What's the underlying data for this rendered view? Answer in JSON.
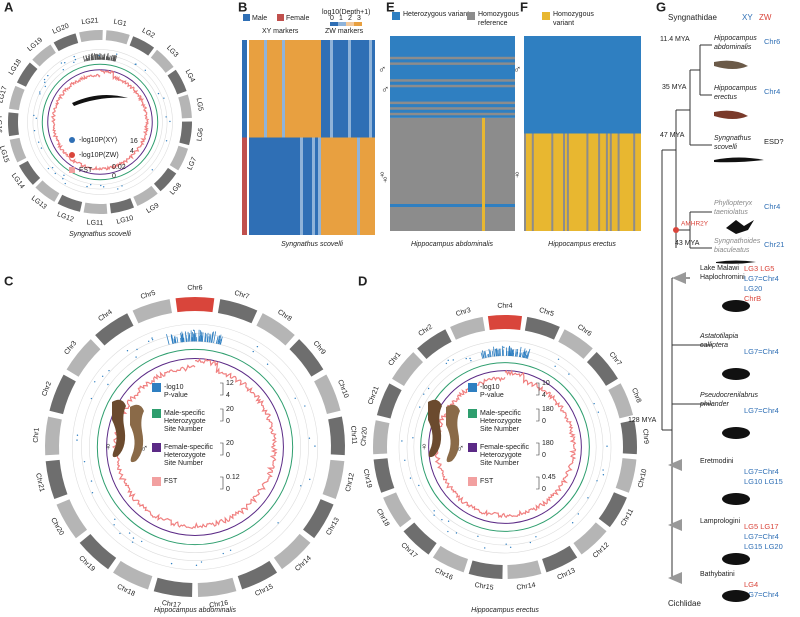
{
  "panels": {
    "A": {
      "label": "A",
      "chromosomes": [
        "LG1",
        "LG2",
        "LG3",
        "LG4",
        "LG5",
        "LG6",
        "LG7",
        "LG8",
        "LG9",
        "LG10",
        "LG11",
        "LG12",
        "LG13",
        "LG14",
        "LG15",
        "LG16",
        "LG17",
        "LG18",
        "LG19",
        "LG20",
        "LG21"
      ],
      "legend": [
        {
          "text": "-log10P(XY)",
          "color": "#2f6fb5"
        },
        {
          "text": "-log10P(ZW)",
          "color": "#d9453b"
        },
        {
          "text": "FST",
          "color": "#f2a0a0"
        }
      ],
      "scales": [
        [
          "16",
          "4"
        ],
        [
          "0.02",
          "0"
        ]
      ],
      "caption": "Syngnathus scovelli"
    },
    "B": {
      "label": "B",
      "legend": [
        {
          "text": "Male",
          "color": "#2f6fb5"
        },
        {
          "text": "Female",
          "color": "#c0504d"
        }
      ],
      "depth_title": "log10(Depth+1)",
      "depth_ticks": [
        "0",
        "1",
        "2",
        "3"
      ],
      "markers": [
        "XY markers",
        "ZW markers"
      ],
      "sexes": [
        "♂",
        "♀"
      ],
      "caption": "Syngnathus scovelli"
    },
    "C": {
      "label": "C",
      "chromosomes": [
        "Chr6",
        "Chr7",
        "Chr8",
        "Chr9",
        "Chr10",
        "Chr11",
        "Chr12",
        "Chr13",
        "Chr14",
        "Chr15",
        "Chr16",
        "Chr17",
        "Chr18",
        "Chr19",
        "Chr20",
        "Chr21",
        "Chr1",
        "Chr2",
        "Chr3",
        "Chr4",
        "Chr5"
      ],
      "highlight": "Chr6",
      "legend": [
        {
          "lines": [
            "-log10",
            "P-value"
          ],
          "color": "#2f7fc1",
          "scale": [
            "12",
            "4"
          ]
        },
        {
          "lines": [
            "Male-specific",
            "Heterozygote",
            "Site Number"
          ],
          "color": "#2e9e6e",
          "scale": [
            "20",
            "0"
          ]
        },
        {
          "lines": [
            "Female-specific",
            "Heterozygote",
            "Site Number"
          ],
          "color": "#5b2a86",
          "scale": [
            "20",
            "0"
          ]
        },
        {
          "lines": [
            "FST"
          ],
          "color": "#f2a0a0",
          "scale": [
            "0.12",
            "0"
          ]
        }
      ],
      "sexes": [
        "♀",
        "♂"
      ],
      "caption": "Hippocampus abdominalis"
    },
    "D": {
      "label": "D",
      "chromosomes": [
        "Chr4",
        "Chr5",
        "Chr6",
        "Chr7",
        "Chr8",
        "Chr9",
        "Chr10",
        "Chr11",
        "Chr12",
        "Chr13",
        "Chr14",
        "Chr15",
        "Chr16",
        "Chr17",
        "Chr18",
        "Chr19",
        "Chr20",
        "Chr21",
        "Chr1",
        "Chr2",
        "Chr3"
      ],
      "highlight": "Chr4",
      "legend": [
        {
          "lines": [
            "-log10",
            "P-value"
          ],
          "color": "#2f7fc1",
          "scale": [
            "10",
            "4"
          ]
        },
        {
          "lines": [
            "Male-specific",
            "Heterozygote",
            "Site Number"
          ],
          "color": "#2e9e6e",
          "scale": [
            "180",
            "0"
          ]
        },
        {
          "lines": [
            "Female-specific",
            "Heterozygote",
            "Site Number"
          ],
          "color": "#5b2a86",
          "scale": [
            "180",
            "0"
          ]
        },
        {
          "lines": [
            "FST"
          ],
          "color": "#f2a0a0",
          "scale": [
            "0.45",
            "0"
          ]
        }
      ],
      "sexes": [
        "♀",
        "♂"
      ],
      "caption": "Hippocampus erectus"
    },
    "E": {
      "label": "E",
      "legend": [
        {
          "lines": [
            "Heterozygous variant"
          ],
          "color": "#2f7fc1"
        },
        {
          "lines": [
            "Homozygous",
            "reference"
          ],
          "color": "#8c8c8c"
        },
        {
          "lines": [
            "Homozygous",
            "variant"
          ],
          "color": "#e8b730"
        }
      ],
      "sexes": [
        "♂",
        "♀"
      ],
      "caption": "Hippocampus abdominalis"
    },
    "F": {
      "label": "F",
      "sexes": [
        "♂",
        "♀"
      ],
      "caption": "Hippocampus erectus"
    },
    "G": {
      "label": "G",
      "group_top": "Syngnathidae",
      "systems": [
        {
          "text": "XY",
          "color": "#2f6fb5"
        },
        {
          "text": "ZW",
          "color": "#d9453b"
        }
      ],
      "taxa": [
        {
          "lines": [
            "Hippocampus",
            "abdominalis"
          ],
          "italic": true,
          "markers": [
            {
              "text": "Chr6",
              "system": "XY"
            }
          ]
        },
        {
          "lines": [
            "Hippocampus",
            "erectus"
          ],
          "italic": true,
          "markers": [
            {
              "text": "Chr4",
              "system": "XY"
            }
          ]
        },
        {
          "lines": [
            "Syngnathus",
            "scovelli"
          ],
          "italic": true,
          "markers": [
            {
              "text": "ESD?"
            }
          ]
        },
        {
          "lines": [
            "Phyllopteryx",
            "taeniolatus"
          ],
          "italic": true,
          "gray": true,
          "markers": [
            {
              "text": "Chr4",
              "system": "XY"
            }
          ]
        },
        {
          "lines": [
            "Syngnathoides",
            "biaculeatus"
          ],
          "italic": true,
          "gray": true,
          "markers": [
            {
              "text": "Chr21",
              "system": "XY"
            }
          ]
        },
        {
          "lines": [
            "Lake Malawi",
            "Haplochromini"
          ],
          "italic": false,
          "markers": [
            {
              "text": "LG3 LG5",
              "system": "ZW"
            },
            {
              "text": "LG7=Chr4",
              "system": "XY"
            },
            {
              "text": "LG20",
              "system": "XY"
            },
            {
              "text": "ChrB",
              "system": "ZW"
            }
          ]
        },
        {
          "lines": [
            "Astatotilapia",
            "calliptera"
          ],
          "italic": true,
          "markers": [
            {
              "text": "LG7=Chr4",
              "system": "XY"
            }
          ]
        },
        {
          "lines": [
            "Pseudocrenilabrus",
            "philander"
          ],
          "italic": true,
          "markers": [
            {
              "text": "LG7=Chr4",
              "system": "XY"
            }
          ]
        },
        {
          "lines": [
            "Eretmodini"
          ],
          "italic": false,
          "markers": [
            {
              "text": "LG7=Chr4",
              "system": "XY"
            },
            {
              "text": "LG10 LG15",
              "system": "XY"
            }
          ]
        },
        {
          "lines": [
            "Lamprologini"
          ],
          "italic": false,
          "markers": [
            {
              "text": "LG5 LG17",
              "system": "ZW"
            },
            {
              "text": "LG7=Chr4",
              "system": "XY"
            },
            {
              "text": "LG15 LG20",
              "system": "XY"
            }
          ]
        },
        {
          "lines": [
            "Bathybatini"
          ],
          "italic": false,
          "markers": [
            {
              "text": "LG4",
              "system": "ZW"
            },
            {
              "text": "LG7=Chr4",
              "system": "XY"
            }
          ]
        }
      ],
      "ages": [
        "11.4 MYA",
        "35 MYA",
        "47 MYA",
        "43 MYA",
        "128 MYA"
      ],
      "gene": "AMHR2Y",
      "group_bottom": "Cichlidae"
    }
  }
}
